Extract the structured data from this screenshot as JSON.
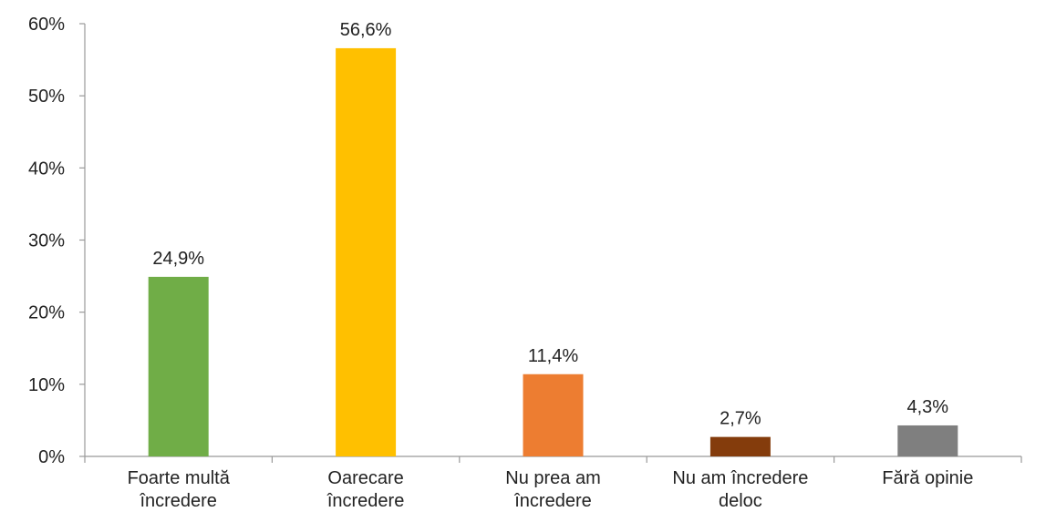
{
  "chart_data": {
    "type": "bar",
    "categories": [
      [
        "Foarte multă",
        "încredere"
      ],
      [
        "Oarecare",
        "încredere"
      ],
      [
        "Nu prea am",
        "încredere"
      ],
      [
        "Nu am încredere",
        "deloc"
      ],
      [
        "Fără opinie"
      ]
    ],
    "values": [
      24.9,
      56.6,
      11.4,
      2.7,
      4.3
    ],
    "value_labels": [
      "24,9%",
      "56,6%",
      "11,4%",
      "2,7%",
      "4,3%"
    ],
    "colors": [
      "#70ad47",
      "#ffc000",
      "#ed7d31",
      "#843c0c",
      "#7f7f7f"
    ],
    "ylim": [
      0,
      60
    ],
    "yticks": [
      {
        "value": 0,
        "label": "0%"
      },
      {
        "value": 10,
        "label": "10%"
      },
      {
        "value": 20,
        "label": "20%"
      },
      {
        "value": 30,
        "label": "30%"
      },
      {
        "value": 40,
        "label": "40%"
      },
      {
        "value": 50,
        "label": "50%"
      },
      {
        "value": 60,
        "label": "60%"
      }
    ],
    "grid": false
  }
}
